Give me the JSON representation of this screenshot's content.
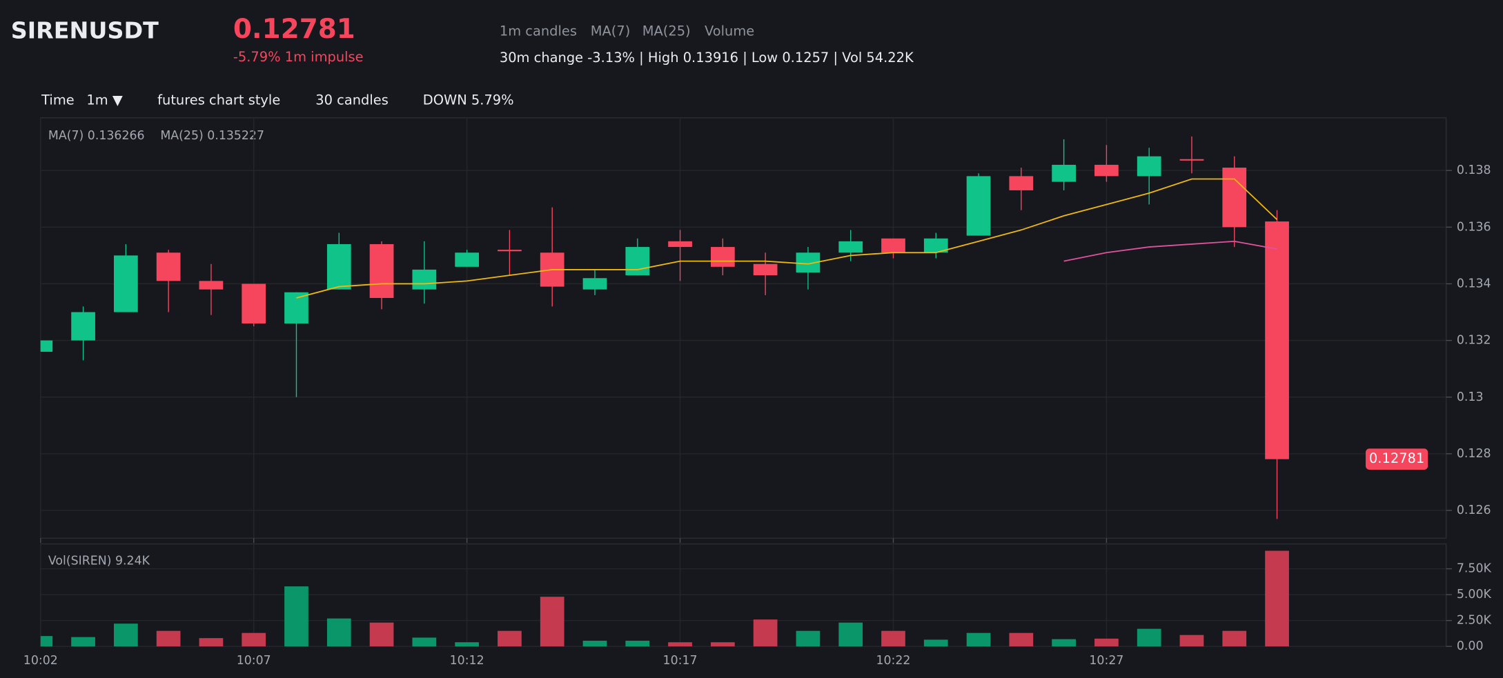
{
  "header": {
    "symbol": "SIRENUSDT",
    "price": "0.12781",
    "change": "-5.79% 1m impulse",
    "indicators": [
      "1m candles",
      "MA(7)",
      "MA(25)",
      "Volume"
    ],
    "stats": "30m change -3.13% | High 0.13916 | Low 0.1257 | Vol 54.22K"
  },
  "toolbar": {
    "time_label": "Time",
    "interval": "1m ▼",
    "style": "futures chart style",
    "count": "30 candles",
    "direction": "DOWN 5.79%"
  },
  "chart_data": [
    {
      "type": "candlestick",
      "readouts": [
        "MA(7) 0.136266",
        "MA(25) 0.135227"
      ],
      "categories": [
        "10:02",
        null,
        null,
        null,
        null,
        "10:07",
        null,
        null,
        null,
        null,
        "10:12",
        null,
        null,
        null,
        null,
        "10:17",
        null,
        null,
        null,
        null,
        "10:22",
        null,
        null,
        null,
        null,
        "10:27",
        null,
        null,
        null,
        null
      ],
      "open": [
        0.1316,
        0.132,
        0.133,
        0.1351,
        0.1341,
        0.134,
        0.1326,
        0.1338,
        0.1354,
        0.1338,
        0.1346,
        0.1352,
        0.1351,
        0.1338,
        0.1343,
        0.1355,
        0.1353,
        0.1347,
        0.1344,
        0.1351,
        0.1356,
        0.1351,
        0.1357,
        0.1378,
        0.1376,
        0.1382,
        0.1378,
        0.1384,
        0.1381,
        0.1362
      ],
      "high": [
        0.132,
        0.1332,
        0.1354,
        0.1352,
        0.1347,
        0.134,
        0.1337,
        0.1358,
        0.1355,
        0.1355,
        0.1352,
        0.1359,
        0.1367,
        0.1345,
        0.1356,
        0.1359,
        0.1356,
        0.1351,
        0.1353,
        0.1359,
        0.1356,
        0.1358,
        0.1379,
        0.1381,
        0.1391,
        0.1389,
        0.1388,
        0.1392,
        0.1385,
        0.1366
      ],
      "low": [
        0.1316,
        0.1313,
        0.133,
        0.133,
        0.1329,
        0.1325,
        0.13,
        0.1338,
        0.1331,
        0.1333,
        0.1346,
        0.1343,
        0.1332,
        0.1336,
        0.1343,
        0.1341,
        0.1343,
        0.1336,
        0.1338,
        0.1348,
        0.1349,
        0.1349,
        0.1357,
        0.1366,
        0.1373,
        0.1376,
        0.1368,
        0.1379,
        0.1353,
        0.1257
      ],
      "close": [
        0.132,
        0.133,
        0.135,
        0.1341,
        0.1338,
        0.1326,
        0.1337,
        0.1354,
        0.1335,
        0.1345,
        0.1351,
        0.1352,
        0.1339,
        0.1342,
        0.1353,
        0.1353,
        0.1346,
        0.1343,
        0.1351,
        0.1355,
        0.1351,
        0.1356,
        0.1378,
        0.1373,
        0.1382,
        0.1378,
        0.1385,
        0.1384,
        0.136,
        0.12781
      ],
      "up_color": "#10c389",
      "down_color": "#f6465d",
      "series": [
        {
          "name": "MA(7)",
          "color": "#f0b90b",
          "values": [
            null,
            null,
            null,
            null,
            null,
            null,
            0.1335,
            0.1339,
            0.134,
            0.134,
            0.1341,
            0.1343,
            0.1345,
            0.1345,
            0.1345,
            0.1348,
            0.1348,
            0.1348,
            0.1347,
            0.135,
            0.1351,
            0.1351,
            0.1355,
            0.1359,
            0.1364,
            0.1368,
            0.1372,
            0.1377,
            0.1377,
            0.136266
          ]
        },
        {
          "name": "MA(25)",
          "color": "#e0529c",
          "values": [
            null,
            null,
            null,
            null,
            null,
            null,
            null,
            null,
            null,
            null,
            null,
            null,
            null,
            null,
            null,
            null,
            null,
            null,
            null,
            null,
            null,
            null,
            null,
            null,
            0.1348,
            0.1351,
            0.1353,
            0.1354,
            0.1355,
            0.135227
          ]
        }
      ],
      "ylim": [
        0.12502,
        0.13986
      ],
      "yticks": [
        0.126,
        0.128,
        0.13,
        0.132,
        0.134,
        0.136,
        0.138
      ],
      "grid": true
    },
    {
      "type": "bar",
      "readout": "Vol(SIREN) 9.24K",
      "values": [
        1000,
        900,
        2200,
        1500,
        800,
        1300,
        5800,
        2700,
        2300,
        850,
        400,
        1500,
        4800,
        550,
        550,
        400,
        400,
        2600,
        1500,
        2300,
        1500,
        650,
        1300,
        1300,
        700,
        750,
        1700,
        1100,
        1500,
        9240
      ],
      "up_color": "#0b9669",
      "down_color": "#c63a4f",
      "ylim": [
        0,
        9900
      ],
      "yticks": [
        {
          "value": 0,
          "label": "0.00"
        },
        {
          "value": 2500,
          "label": "2.50K"
        },
        {
          "value": 5000,
          "label": "5.00K"
        },
        {
          "value": 7500,
          "label": "7.50K"
        }
      ],
      "grid": true
    }
  ]
}
